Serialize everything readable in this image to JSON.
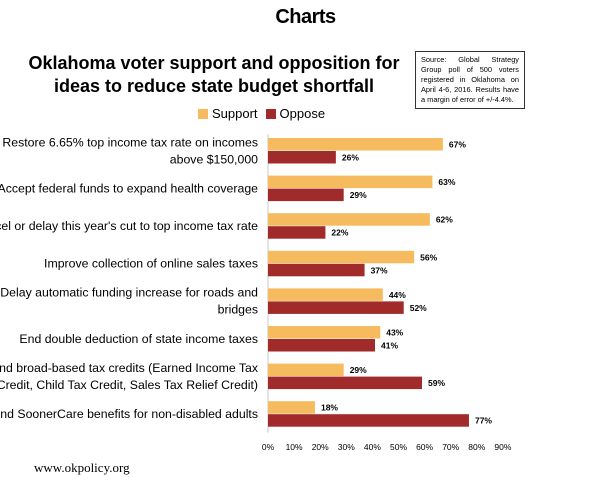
{
  "page_heading": "Charts",
  "source_note": "Source: Global Strategy Group poll of 500 voters registered in Oklahoma on April 4-6, 2016. Results have a margin of error of +/-4.4%.",
  "footer": "www.okpolicy.org",
  "colors": {
    "support": "#F6BB5E",
    "oppose": "#A12A2A"
  },
  "chart_data": {
    "type": "bar",
    "orientation": "horizontal",
    "title": "Oklahoma voter support and opposition for ideas to reduce state budget shortfall",
    "title_lines": [
      "Oklahoma voter support and opposition for",
      "ideas to reduce state budget shortfall"
    ],
    "legend_placement": "top",
    "categories": [
      [
        "Restore 6.65% top income tax rate on incomes",
        "above $150,000"
      ],
      [
        "Accept federal funds to expand health coverage"
      ],
      [
        "Cancel or delay this year's cut to top income tax rate"
      ],
      [
        "Improve collection of online sales taxes"
      ],
      [
        "Delay automatic funding increase for roads and",
        "bridges"
      ],
      [
        "End double deduction of state income taxes"
      ],
      [
        "End broad-based tax credits (Earned Income Tax",
        "Credit, Child Tax Credit, Sales Tax Relief Credit)"
      ],
      [
        "End SoonerCare benefits for non-disabled adults"
      ]
    ],
    "series": [
      {
        "name": "Support",
        "values": [
          67,
          63,
          62,
          56,
          44,
          43,
          29,
          18
        ]
      },
      {
        "name": "Oppose",
        "values": [
          26,
          29,
          22,
          37,
          52,
          41,
          59,
          77
        ]
      }
    ],
    "value_suffix": "%",
    "xlim": [
      0,
      90
    ],
    "xticks": [
      "0%",
      "10%",
      "20%",
      "30%",
      "40%",
      "50%",
      "60%",
      "70%",
      "80%",
      "90%"
    ],
    "grid": false
  }
}
